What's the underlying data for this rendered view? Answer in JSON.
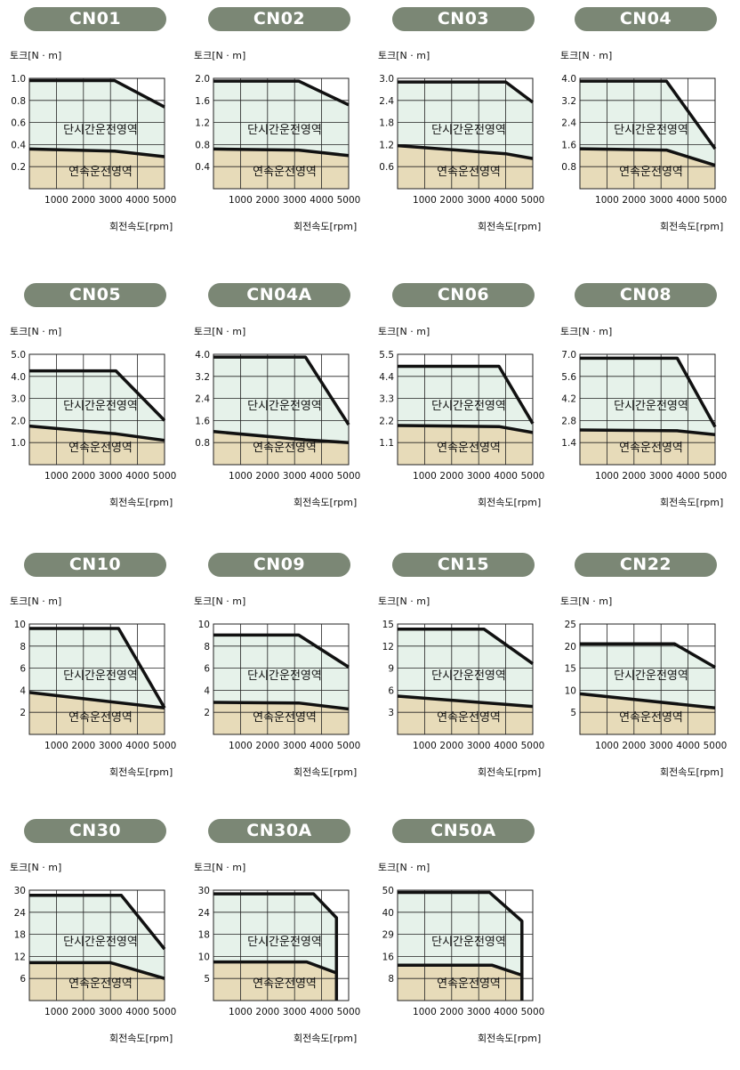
{
  "y_axis_label": "토크[N · m]",
  "x_axis_label": "회전속도[rpm]",
  "peak_region_label": "단시간운전영역",
  "continuous_region_label": "연속운전영역",
  "colors": {
    "peak_fill": "#e6f2ea",
    "continuous_fill": "#e7dbb9",
    "pill": "#7b8775",
    "curve": "#111111"
  },
  "chart_data": [
    {
      "type": "area",
      "title": "CN01",
      "ylim": [
        0,
        1.0
      ],
      "xlim": [
        0,
        5000
      ],
      "y_ticks": [
        "1.0",
        "0.8",
        "0.6",
        "0.4",
        "0.2"
      ],
      "x_ticks": [
        "1000",
        "2000",
        "3000",
        "4000",
        "5000"
      ],
      "series": [
        {
          "values": [
            {
              "x": 0,
              "y": 0.98
            },
            {
              "x": 3150,
              "y": 0.98
            },
            {
              "x": 5000,
              "y": 0.74
            }
          ]
        },
        {
          "values": [
            {
              "x": 0,
              "y": 0.36
            },
            {
              "x": 3150,
              "y": 0.34
            },
            {
              "x": 5000,
              "y": 0.29
            }
          ]
        }
      ]
    },
    {
      "type": "area",
      "title": "CN02",
      "ylim": [
        0,
        2.0
      ],
      "xlim": [
        0,
        5000
      ],
      "y_ticks": [
        "2.0",
        "1.6",
        "1.2",
        "0.8",
        "0.4"
      ],
      "x_ticks": [
        "1000",
        "2000",
        "3000",
        "4000",
        "5000"
      ],
      "series": [
        {
          "values": [
            {
              "x": 0,
              "y": 1.95
            },
            {
              "x": 3150,
              "y": 1.95
            },
            {
              "x": 5000,
              "y": 1.52
            }
          ]
        },
        {
          "values": [
            {
              "x": 0,
              "y": 0.72
            },
            {
              "x": 3150,
              "y": 0.7
            },
            {
              "x": 5000,
              "y": 0.6
            }
          ]
        }
      ]
    },
    {
      "type": "area",
      "title": "CN03",
      "ylim": [
        0,
        3.0
      ],
      "xlim": [
        0,
        5000
      ],
      "y_ticks": [
        "3.0",
        "2.4",
        "1.8",
        "1.2",
        "0.6"
      ],
      "x_ticks": [
        "1000",
        "2000",
        "3000",
        "4000",
        "5000"
      ],
      "series": [
        {
          "values": [
            {
              "x": 0,
              "y": 2.9
            },
            {
              "x": 4000,
              "y": 2.9
            },
            {
              "x": 5000,
              "y": 2.35
            }
          ]
        },
        {
          "values": [
            {
              "x": 0,
              "y": 1.17
            },
            {
              "x": 4000,
              "y": 0.95
            },
            {
              "x": 5000,
              "y": 0.82
            }
          ]
        }
      ]
    },
    {
      "type": "area",
      "title": "CN04",
      "ylim": [
        0,
        4.0
      ],
      "xlim": [
        0,
        5000
      ],
      "y_ticks": [
        "4.0",
        "3.2",
        "2.4",
        "1.6",
        "0.8"
      ],
      "x_ticks": [
        "1000",
        "2000",
        "3000",
        "4000",
        "5000"
      ],
      "series": [
        {
          "values": [
            {
              "x": 0,
              "y": 3.9
            },
            {
              "x": 3200,
              "y": 3.9
            },
            {
              "x": 5000,
              "y": 1.45
            }
          ]
        },
        {
          "values": [
            {
              "x": 0,
              "y": 1.45
            },
            {
              "x": 3200,
              "y": 1.4
            },
            {
              "x": 5000,
              "y": 0.85
            }
          ]
        }
      ]
    },
    {
      "type": "area",
      "title": "CN05",
      "ylim": [
        0,
        5.0
      ],
      "xlim": [
        0,
        5000
      ],
      "y_ticks": [
        "5.0",
        "4.0",
        "3.0",
        "2.0",
        "1.0"
      ],
      "x_ticks": [
        "1000",
        "2000",
        "3000",
        "4000",
        "5000"
      ],
      "series": [
        {
          "values": [
            {
              "x": 0,
              "y": 4.25
            },
            {
              "x": 3200,
              "y": 4.25
            },
            {
              "x": 5000,
              "y": 2.0
            }
          ]
        },
        {
          "values": [
            {
              "x": 0,
              "y": 1.75
            },
            {
              "x": 3200,
              "y": 1.4
            },
            {
              "x": 5000,
              "y": 1.1
            }
          ]
        }
      ]
    },
    {
      "type": "area",
      "title": "CN04A",
      "ylim": [
        0,
        4.0
      ],
      "xlim": [
        0,
        5000
      ],
      "y_ticks": [
        "4.0",
        "3.2",
        "2.4",
        "1.6",
        "0.8"
      ],
      "x_ticks": [
        "1000",
        "2000",
        "3000",
        "4000",
        "5000"
      ],
      "series": [
        {
          "values": [
            {
              "x": 0,
              "y": 3.9
            },
            {
              "x": 3400,
              "y": 3.9
            },
            {
              "x": 5000,
              "y": 1.45
            }
          ]
        },
        {
          "values": [
            {
              "x": 0,
              "y": 1.2
            },
            {
              "x": 3400,
              "y": 0.9
            },
            {
              "x": 5000,
              "y": 0.8
            }
          ]
        }
      ]
    },
    {
      "type": "area",
      "title": "CN06",
      "ylim": [
        0,
        5.5
      ],
      "xlim": [
        0,
        5000
      ],
      "y_ticks": [
        "5.5",
        "4.4",
        "3.3",
        "2.2",
        "1.1"
      ],
      "x_ticks": [
        "1000",
        "2000",
        "3000",
        "4000",
        "5000"
      ],
      "series": [
        {
          "values": [
            {
              "x": 0,
              "y": 4.9
            },
            {
              "x": 3750,
              "y": 4.9
            },
            {
              "x": 5000,
              "y": 2.05
            }
          ]
        },
        {
          "values": [
            {
              "x": 0,
              "y": 1.95
            },
            {
              "x": 3750,
              "y": 1.9
            },
            {
              "x": 5000,
              "y": 1.6
            }
          ]
        }
      ]
    },
    {
      "type": "area",
      "title": "CN08",
      "ylim": [
        0,
        7.0
      ],
      "xlim": [
        0,
        5000
      ],
      "y_ticks": [
        "7.0",
        "5.6",
        "4.2",
        "2.8",
        "1.4"
      ],
      "x_ticks": [
        "1000",
        "2000",
        "3000",
        "4000",
        "5000"
      ],
      "series": [
        {
          "values": [
            {
              "x": 0,
              "y": 6.75
            },
            {
              "x": 3600,
              "y": 6.75
            },
            {
              "x": 5000,
              "y": 2.4
            }
          ]
        },
        {
          "values": [
            {
              "x": 0,
              "y": 2.2
            },
            {
              "x": 3600,
              "y": 2.15
            },
            {
              "x": 5000,
              "y": 1.9
            }
          ]
        }
      ]
    },
    {
      "type": "area",
      "title": "CN10",
      "ylim": [
        0,
        10
      ],
      "xlim": [
        0,
        5000
      ],
      "y_ticks": [
        "10",
        "8",
        "6",
        "4",
        "2"
      ],
      "x_ticks": [
        "1000",
        "2000",
        "3000",
        "4000",
        "5000"
      ],
      "series": [
        {
          "values": [
            {
              "x": 0,
              "y": 9.6
            },
            {
              "x": 3300,
              "y": 9.6
            },
            {
              "x": 5000,
              "y": 2.4
            }
          ]
        },
        {
          "values": [
            {
              "x": 0,
              "y": 3.8
            },
            {
              "x": 5000,
              "y": 2.4
            }
          ]
        }
      ]
    },
    {
      "type": "area",
      "title": "CN09",
      "ylim": [
        0,
        10
      ],
      "xlim": [
        0,
        5000
      ],
      "y_ticks": [
        "10",
        "8",
        "6",
        "4",
        "2"
      ],
      "x_ticks": [
        "1000",
        "2000",
        "3000",
        "4000",
        "5000"
      ],
      "series": [
        {
          "values": [
            {
              "x": 0,
              "y": 9.0
            },
            {
              "x": 3150,
              "y": 9.0
            },
            {
              "x": 5000,
              "y": 6.1
            }
          ]
        },
        {
          "values": [
            {
              "x": 0,
              "y": 2.9
            },
            {
              "x": 3150,
              "y": 2.85
            },
            {
              "x": 5000,
              "y": 2.3
            }
          ]
        }
      ]
    },
    {
      "type": "area",
      "title": "CN15",
      "ylim": [
        0,
        15
      ],
      "xlim": [
        0,
        5000
      ],
      "y_ticks": [
        "15",
        "12",
        "9",
        "6",
        "3"
      ],
      "x_ticks": [
        "1000",
        "2000",
        "3000",
        "4000",
        "5000"
      ],
      "series": [
        {
          "values": [
            {
              "x": 0,
              "y": 14.3
            },
            {
              "x": 3200,
              "y": 14.3
            },
            {
              "x": 5000,
              "y": 9.6
            }
          ]
        },
        {
          "values": [
            {
              "x": 0,
              "y": 5.2
            },
            {
              "x": 5000,
              "y": 3.8
            }
          ]
        }
      ]
    },
    {
      "type": "area",
      "title": "CN22",
      "ylim": [
        0,
        25
      ],
      "xlim": [
        0,
        5000
      ],
      "y_ticks": [
        "25",
        "20",
        "15",
        "10",
        "5"
      ],
      "x_ticks": [
        "1000",
        "2000",
        "3000",
        "4000",
        "5000"
      ],
      "series": [
        {
          "values": [
            {
              "x": 0,
              "y": 20.5
            },
            {
              "x": 3500,
              "y": 20.5
            },
            {
              "x": 5000,
              "y": 15.2
            }
          ]
        },
        {
          "values": [
            {
              "x": 0,
              "y": 9.2
            },
            {
              "x": 5000,
              "y": 6.0
            }
          ]
        }
      ]
    },
    {
      "type": "area",
      "title": "CN30",
      "ylim": [
        0,
        30
      ],
      "xlim": [
        0,
        5000
      ],
      "y_ticks": [
        "30",
        "24",
        "18",
        "12",
        "6"
      ],
      "x_ticks": [
        "1000",
        "2000",
        "3000",
        "4000",
        "5000"
      ],
      "series": [
        {
          "values": [
            {
              "x": 0,
              "y": 28.6
            },
            {
              "x": 3400,
              "y": 28.6
            },
            {
              "x": 5000,
              "y": 14.0
            }
          ]
        },
        {
          "values": [
            {
              "x": 0,
              "y": 10.3
            },
            {
              "x": 3000,
              "y": 10.3
            },
            {
              "x": 5000,
              "y": 6.0
            }
          ]
        }
      ]
    },
    {
      "type": "area",
      "title": "CN30A",
      "ylim": [
        0,
        30
      ],
      "xlim": [
        0,
        5000
      ],
      "y_ticks": [
        "30",
        "24",
        "18",
        "10",
        "5"
      ],
      "x_ticks": [
        "1000",
        "2000",
        "3000",
        "4000",
        "5000"
      ],
      "series": [
        {
          "values": [
            {
              "x": 0,
              "y": 29.0
            },
            {
              "x": 3700,
              "y": 29.0
            },
            {
              "x": 4550,
              "y": 22.5
            },
            {
              "x": 4550,
              "y": 0
            }
          ]
        },
        {
          "values": [
            {
              "x": 0,
              "y": 10.5
            },
            {
              "x": 3450,
              "y": 10.5
            },
            {
              "x": 4550,
              "y": 7.5
            }
          ]
        }
      ]
    },
    {
      "type": "area",
      "title": "CN50A",
      "ylim": [
        0,
        50
      ],
      "xlim": [
        0,
        5000
      ],
      "y_ticks": [
        "50",
        "40",
        "29",
        "16",
        "8"
      ],
      "x_ticks": [
        "1000",
        "2000",
        "3000",
        "4000",
        "5000"
      ],
      "series": [
        {
          "values": [
            {
              "x": 0,
              "y": 49.0
            },
            {
              "x": 3400,
              "y": 49.0
            },
            {
              "x": 4600,
              "y": 36.0
            },
            {
              "x": 4600,
              "y": 0
            }
          ]
        },
        {
          "values": [
            {
              "x": 0,
              "y": 16.0
            },
            {
              "x": 3500,
              "y": 16.0
            },
            {
              "x": 4600,
              "y": 11.5
            }
          ]
        }
      ]
    }
  ]
}
